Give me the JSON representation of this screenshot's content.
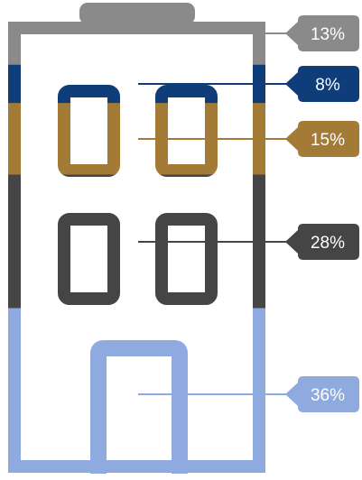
{
  "chart_data": {
    "type": "pictorial-stacked-bar",
    "segments": [
      {
        "value": 13,
        "label": "13%",
        "color": "#8a8a8a"
      },
      {
        "value": 8,
        "label": "8%",
        "color": "#0e3d7a"
      },
      {
        "value": 15,
        "label": "15%",
        "color": "#a47a37"
      },
      {
        "value": 28,
        "label": "28%",
        "color": "#454545"
      },
      {
        "value": 36,
        "label": "36%",
        "color": "#8eaadf"
      }
    ]
  }
}
